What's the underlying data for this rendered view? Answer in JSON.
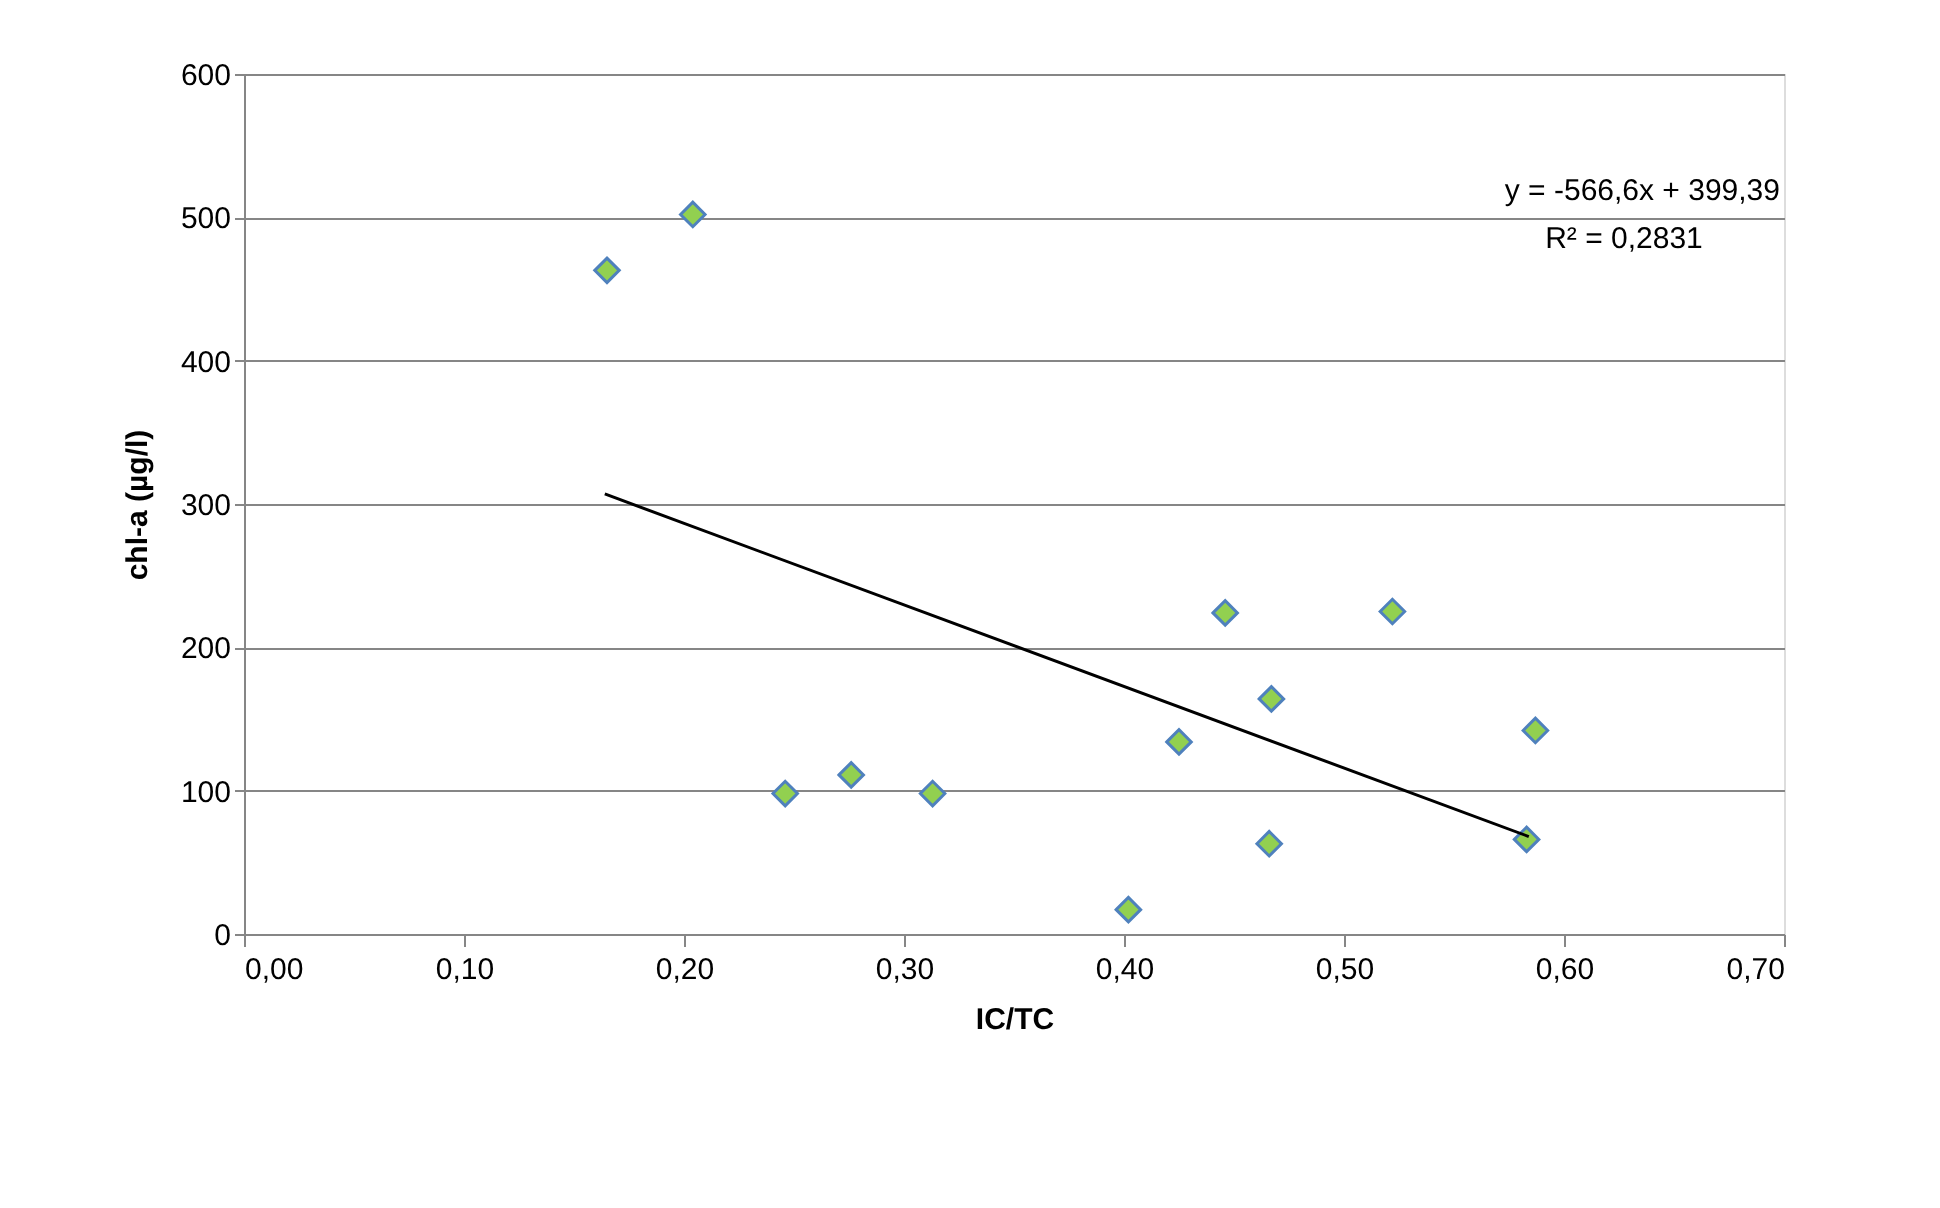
{
  "chart_data": {
    "type": "scatter",
    "xlabel": "IC/TC",
    "ylabel": "chl-a (µg/l)",
    "xlim": [
      0,
      0.7
    ],
    "ylim": [
      0,
      600
    ],
    "xticks": [
      {
        "value": 0,
        "label": "0,00"
      },
      {
        "value": 0.1,
        "label": "0,10"
      },
      {
        "value": 0.2,
        "label": "0,20"
      },
      {
        "value": 0.3,
        "label": "0,30"
      },
      {
        "value": 0.4,
        "label": "0,40"
      },
      {
        "value": 0.5,
        "label": "0,50"
      },
      {
        "value": 0.6,
        "label": "0,60"
      },
      {
        "value": 0.7,
        "label": "0,70"
      }
    ],
    "yticks": [
      0,
      100,
      200,
      300,
      400,
      500,
      600
    ],
    "grid": "y",
    "marker": "diamond",
    "series": [
      {
        "color": "#92d050",
        "x": [
          0.165,
          0.204,
          0.246,
          0.276,
          0.313,
          0.402,
          0.425,
          0.446,
          0.466,
          0.467,
          0.522,
          0.583,
          0.587
        ],
        "values": [
          463,
          502,
          98,
          111,
          98,
          17,
          134,
          224,
          63,
          164,
          225,
          66,
          142
        ]
      },
      {
        "type": "line",
        "marker": "none",
        "color": "#000000",
        "x": [
          0.164,
          0.584
        ],
        "values": [
          307,
          68
        ]
      }
    ],
    "annotations": [
      "y = -566,6x + 399,39",
      "R² = 0,2831"
    ]
  }
}
